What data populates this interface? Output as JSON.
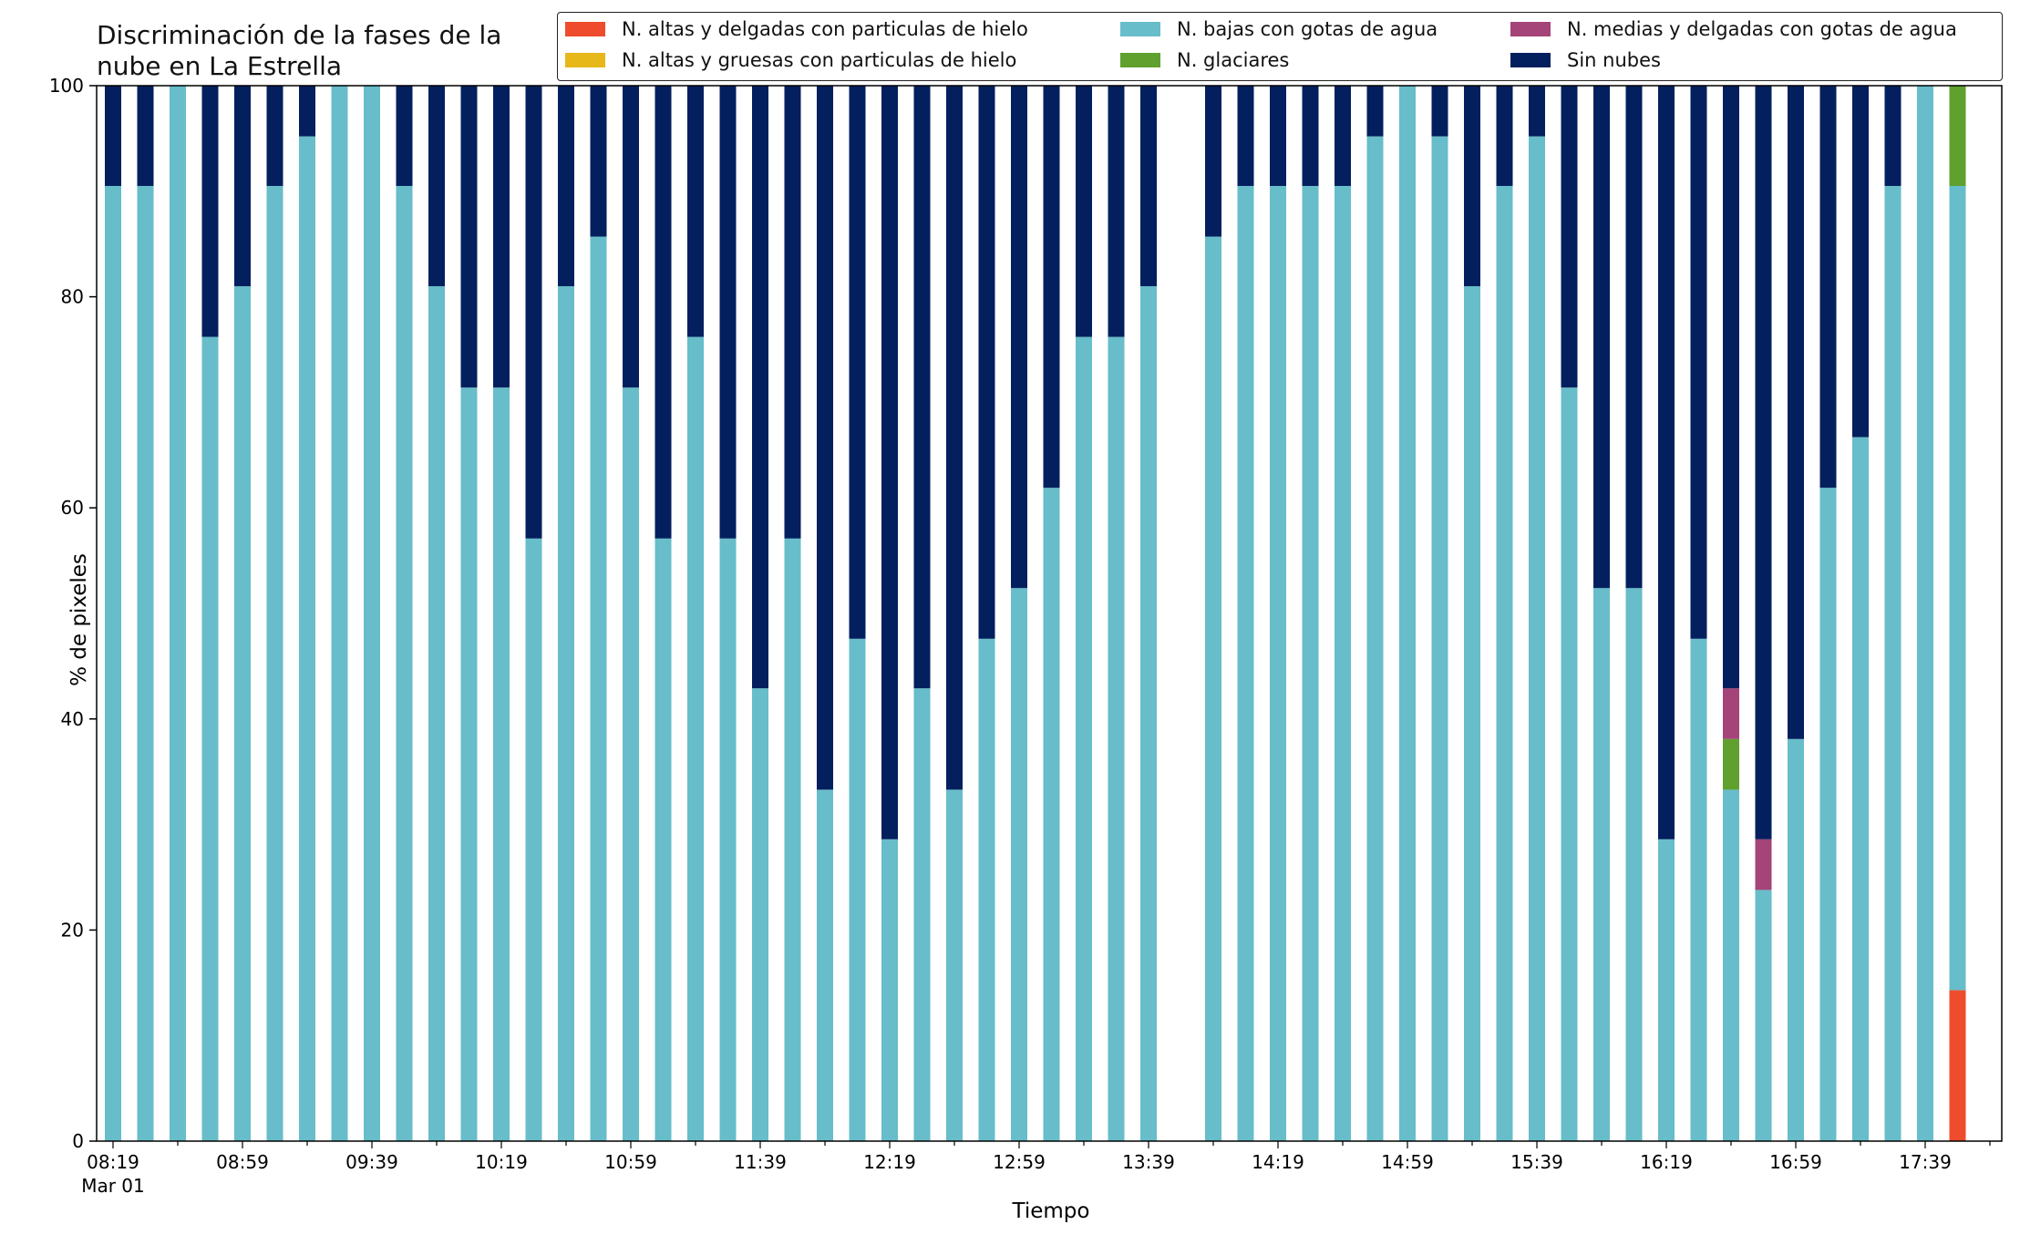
{
  "chart_data": {
    "type": "bar",
    "stacked": true,
    "title": "Discriminación de la fases de la\nnube en La Estrella",
    "xlabel": "Tiempo",
    "ylabel": "% de pixeles",
    "ylim": [
      0,
      100
    ],
    "yticks": [
      0,
      20,
      40,
      60,
      80,
      100
    ],
    "x_tick_labels": [
      "08:19",
      "08:59",
      "09:39",
      "10:19",
      "10:59",
      "11:39",
      "12:19",
      "12:59",
      "13:39",
      "14:19",
      "14:59",
      "15:39",
      "16:19",
      "16:59",
      "17:39"
    ],
    "x_date_label": "Mar 01",
    "legend_position": "top-right",
    "categories": [
      "08:19",
      "08:29",
      "08:39",
      "08:49",
      "08:59",
      "09:09",
      "09:19",
      "09:29",
      "09:39",
      "09:49",
      "09:59",
      "10:09",
      "10:19",
      "10:29",
      "10:39",
      "10:49",
      "10:59",
      "11:09",
      "11:19",
      "11:29",
      "11:39",
      "11:49",
      "11:59",
      "12:09",
      "12:19",
      "12:29",
      "12:39",
      "12:49",
      "12:59",
      "13:09",
      "13:19",
      "13:29",
      "13:39",
      "13:49",
      "13:59",
      "14:09",
      "14:19",
      "14:29",
      "14:39",
      "14:49",
      "14:59",
      "15:09",
      "15:19",
      "15:29",
      "15:39",
      "15:49",
      "15:59",
      "16:09",
      "16:19",
      "16:29",
      "16:39",
      "16:49",
      "16:59",
      "17:09",
      "17:19",
      "17:29",
      "17:39",
      "17:49"
    ],
    "series": [
      {
        "name": "N. altas y delgadas con particulas de hielo",
        "color": "#ee4c2c",
        "values": [
          0,
          0,
          0,
          0,
          0,
          0,
          0,
          0,
          0,
          0,
          0,
          0,
          0,
          0,
          0,
          0,
          0,
          0,
          0,
          0,
          0,
          0,
          0,
          0,
          0,
          0,
          0,
          0,
          0,
          0,
          0,
          0,
          0,
          0,
          0,
          0,
          0,
          0,
          0,
          0,
          0,
          0,
          0,
          0,
          0,
          0,
          0,
          0,
          0,
          0,
          0,
          0,
          0,
          0,
          0,
          0,
          0,
          14.3
        ]
      },
      {
        "name": "N. altas y gruesas con particulas de hielo",
        "color": "#e6b81a",
        "values": [
          0,
          0,
          0,
          0,
          0,
          0,
          0,
          0,
          0,
          0,
          0,
          0,
          0,
          0,
          0,
          0,
          0,
          0,
          0,
          0,
          0,
          0,
          0,
          0,
          0,
          0,
          0,
          0,
          0,
          0,
          0,
          0,
          0,
          0,
          0,
          0,
          0,
          0,
          0,
          0,
          0,
          0,
          0,
          0,
          0,
          0,
          0,
          0,
          0,
          0,
          0,
          0,
          0,
          0,
          0,
          0,
          0,
          0
        ]
      },
      {
        "name": "N. bajas con gotas de agua",
        "color": "#67bdc9",
        "values": [
          90.5,
          90.5,
          100,
          76.2,
          81,
          90.5,
          95.2,
          100,
          100,
          90.5,
          81,
          71.4,
          71.4,
          57.1,
          81,
          85.7,
          71.4,
          57.1,
          76.2,
          57.1,
          42.9,
          57.1,
          33.3,
          47.6,
          28.6,
          42.9,
          33.3,
          47.6,
          52.4,
          61.9,
          76.2,
          76.2,
          81,
          null,
          85.7,
          90.5,
          90.5,
          90.5,
          90.5,
          95.2,
          100,
          95.2,
          81,
          90.5,
          95.2,
          71.4,
          52.4,
          52.4,
          28.6,
          47.6,
          33.3,
          23.8,
          38.1,
          61.9,
          66.7,
          90.5,
          100,
          76.2
        ]
      },
      {
        "name": "N. glaciares",
        "color": "#5fa02e",
        "values": [
          0,
          0,
          0,
          0,
          0,
          0,
          0,
          0,
          0,
          0,
          0,
          0,
          0,
          0,
          0,
          0,
          0,
          0,
          0,
          0,
          0,
          0,
          0,
          0,
          0,
          0,
          0,
          0,
          0,
          0,
          0,
          0,
          0,
          0,
          0,
          0,
          0,
          0,
          0,
          0,
          0,
          0,
          0,
          0,
          0,
          0,
          0,
          0,
          0,
          0,
          4.8,
          0,
          0,
          0,
          0,
          0,
          0,
          9.5
        ]
      },
      {
        "name": "N. medias y delgadas con gotas de agua",
        "color": "#a44478",
        "values": [
          0,
          0,
          0,
          0,
          0,
          0,
          0,
          0,
          0,
          0,
          0,
          0,
          0,
          0,
          0,
          0,
          0,
          0,
          0,
          0,
          0,
          0,
          0,
          0,
          0,
          0,
          0,
          0,
          0,
          0,
          0,
          0,
          0,
          0,
          0,
          0,
          0,
          0,
          0,
          0,
          0,
          0,
          0,
          0,
          0,
          0,
          0,
          0,
          0,
          0,
          4.8,
          4.8,
          0,
          0,
          0,
          0,
          0,
          0
        ]
      },
      {
        "name": "Sin nubes",
        "color": "#031f5e",
        "values": [
          9.5,
          9.5,
          0,
          23.8,
          19,
          9.5,
          4.8,
          0,
          0,
          9.5,
          19,
          28.6,
          28.6,
          42.9,
          19,
          14.3,
          28.6,
          42.9,
          23.8,
          42.9,
          57.1,
          42.9,
          66.7,
          52.4,
          71.4,
          57.1,
          66.7,
          52.4,
          47.6,
          38.1,
          23.8,
          23.8,
          19,
          null,
          14.3,
          9.5,
          9.5,
          9.5,
          9.5,
          4.8,
          0,
          4.8,
          19,
          9.5,
          4.8,
          28.6,
          47.6,
          47.6,
          71.4,
          52.4,
          57.1,
          71.4,
          61.9,
          38.1,
          33.3,
          9.5,
          0,
          0
        ]
      }
    ]
  }
}
